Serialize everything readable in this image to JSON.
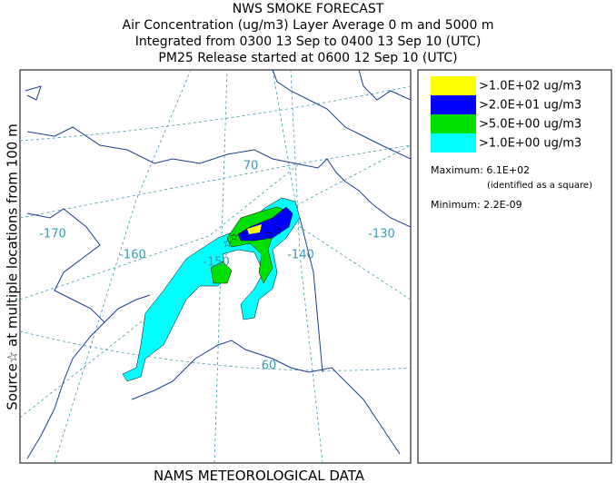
{
  "header": {
    "title": "NWS SMOKE FORECAST",
    "lines": [
      "Air Concentration (ug/m3) Layer Average    0 m and  5000 m",
      "Integrated from 0300 13 Sep to 0400 13 Sep 10 (UTC)",
      "PM25 Release started at 0600 12 Sep 10 (UTC)"
    ]
  },
  "side_label": "Source☆  at multiple locations   from   100 m",
  "footer": "NAMS METEOROLOGICAL DATA",
  "map": {
    "labels": [
      "70",
      "-170",
      "-160",
      "-150",
      "-140",
      "-130",
      "60"
    ]
  },
  "legend": {
    "entries": [
      {
        "label": ">1.0E+02 ug/m3",
        "color": "#ffff00"
      },
      {
        "label": ">2.0E+01 ug/m3",
        "color": "#0000ff"
      },
      {
        "label": ">5.0E+00 ug/m3",
        "color": "#00e000"
      },
      {
        "label": ">1.0E+00 ug/m3",
        "color": "#00ffff"
      }
    ],
    "maximum": "Maximum: 6.1E+02",
    "maximum_note": "(identified as a square)",
    "minimum": "Minimum: 2.2E-09"
  }
}
